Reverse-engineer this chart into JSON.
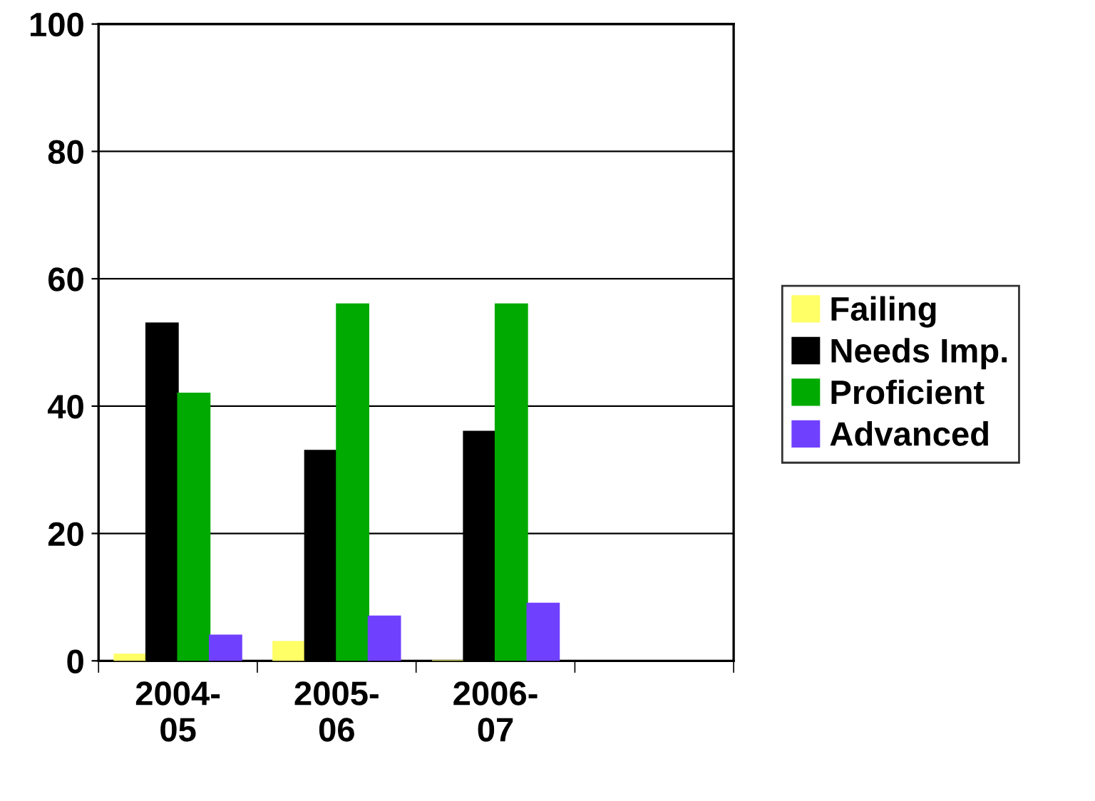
{
  "chart_data": {
    "type": "bar",
    "categories": [
      "2004-\n05",
      "2005-\n06",
      "2006-\n07",
      null
    ],
    "series": [
      {
        "name": "Failing",
        "color": "#ffff66",
        "values": [
          1,
          3,
          0,
          null
        ]
      },
      {
        "name": "Needs Imp.",
        "color": "#000000",
        "values": [
          53,
          33,
          36,
          null
        ]
      },
      {
        "name": "Proficient",
        "color": "#00aa00",
        "values": [
          42,
          56,
          56,
          null
        ]
      },
      {
        "name": "Advanced",
        "color": "#7040ff",
        "values": [
          4,
          7,
          9,
          null
        ]
      }
    ],
    "ylim": [
      0,
      100
    ],
    "yticks": [
      0,
      20,
      40,
      60,
      80,
      100
    ],
    "grid": "y",
    "legend": "right"
  }
}
